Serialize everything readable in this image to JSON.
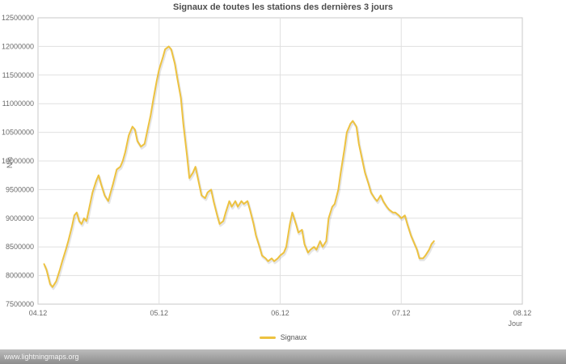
{
  "page": {
    "footer": "www.lightningmaps.org"
  },
  "colors": {
    "accent": "#edc240",
    "grid": "#e0e0e0",
    "plot_border": "#c8c8c8",
    "tick_text": "#6a6a6a",
    "title_text": "#4d4d4d"
  },
  "chart_data": {
    "type": "line",
    "title": "Signaux de toutes les stations des dernières 3 jours",
    "xlabel": "Jour",
    "ylabel": "N/h",
    "xlim": [
      4,
      8
    ],
    "ylim": [
      7500000,
      12500000
    ],
    "grid": true,
    "legend_position": "bottom",
    "x_ticks": [
      {
        "value": 4,
        "label": "04.12"
      },
      {
        "value": 5,
        "label": "05.12"
      },
      {
        "value": 6,
        "label": "06.12"
      },
      {
        "value": 7,
        "label": "07.12"
      },
      {
        "value": 8,
        "label": "08.12"
      }
    ],
    "y_ticks": [
      {
        "value": 7500000,
        "label": "7500000"
      },
      {
        "value": 8000000,
        "label": "8000000"
      },
      {
        "value": 8500000,
        "label": "8500000"
      },
      {
        "value": 9000000,
        "label": "9000000"
      },
      {
        "value": 9500000,
        "label": "9500000"
      },
      {
        "value": 10000000,
        "label": "10000000"
      },
      {
        "value": 10500000,
        "label": "10500000"
      },
      {
        "value": 11000000,
        "label": "11000000"
      },
      {
        "value": 11500000,
        "label": "11500000"
      },
      {
        "value": 12000000,
        "label": "12000000"
      },
      {
        "value": 12500000,
        "label": "12500000"
      }
    ],
    "series": [
      {
        "name": "Signaux",
        "color": "#edc240",
        "x": [
          4.05,
          4.07,
          4.1,
          4.12,
          4.15,
          4.18,
          4.2,
          4.23,
          4.25,
          4.28,
          4.3,
          4.32,
          4.34,
          4.36,
          4.38,
          4.4,
          4.42,
          4.45,
          4.48,
          4.5,
          4.52,
          4.55,
          4.58,
          4.6,
          4.62,
          4.65,
          4.68,
          4.7,
          4.72,
          4.75,
          4.78,
          4.8,
          4.82,
          4.85,
          4.88,
          4.9,
          4.93,
          4.95,
          4.98,
          5.0,
          5.03,
          5.05,
          5.08,
          5.1,
          5.13,
          5.15,
          5.18,
          5.2,
          5.23,
          5.25,
          5.28,
          5.3,
          5.33,
          5.35,
          5.38,
          5.4,
          5.43,
          5.45,
          5.48,
          5.5,
          5.53,
          5.55,
          5.58,
          5.6,
          5.63,
          5.65,
          5.68,
          5.7,
          5.73,
          5.75,
          5.78,
          5.8,
          5.83,
          5.85,
          5.88,
          5.9,
          5.93,
          5.95,
          5.98,
          6.0,
          6.03,
          6.05,
          6.08,
          6.1,
          6.13,
          6.15,
          6.18,
          6.2,
          6.23,
          6.25,
          6.28,
          6.3,
          6.33,
          6.35,
          6.38,
          6.4,
          6.43,
          6.45,
          6.48,
          6.5,
          6.53,
          6.55,
          6.58,
          6.6,
          6.63,
          6.65,
          6.68,
          6.7,
          6.73,
          6.75,
          6.78,
          6.8,
          6.83,
          6.85,
          6.88,
          6.9,
          6.93,
          6.95,
          6.98,
          7.0,
          7.03,
          7.05,
          7.08,
          7.1,
          7.13,
          7.15,
          7.18,
          7.2,
          7.23,
          7.25,
          7.27
        ],
        "y": [
          8200000,
          8100000,
          7850000,
          7800000,
          7900000,
          8100000,
          8250000,
          8450000,
          8600000,
          8850000,
          9050000,
          9100000,
          8950000,
          8900000,
          9000000,
          8950000,
          9150000,
          9450000,
          9650000,
          9750000,
          9600000,
          9400000,
          9300000,
          9450000,
          9600000,
          9850000,
          9900000,
          10000000,
          10150000,
          10450000,
          10600000,
          10550000,
          10350000,
          10250000,
          10300000,
          10500000,
          10800000,
          11050000,
          11400000,
          11600000,
          11800000,
          11950000,
          12000000,
          11950000,
          11700000,
          11450000,
          11100000,
          10650000,
          10100000,
          9700000,
          9800000,
          9900000,
          9600000,
          9400000,
          9350000,
          9450000,
          9500000,
          9300000,
          9050000,
          8900000,
          8950000,
          9100000,
          9300000,
          9200000,
          9300000,
          9200000,
          9300000,
          9250000,
          9300000,
          9150000,
          8900000,
          8700000,
          8500000,
          8350000,
          8300000,
          8250000,
          8300000,
          8250000,
          8300000,
          8350000,
          8400000,
          8500000,
          8900000,
          9100000,
          8900000,
          8750000,
          8800000,
          8550000,
          8400000,
          8450000,
          8500000,
          8450000,
          8600000,
          8500000,
          8600000,
          9000000,
          9200000,
          9250000,
          9500000,
          9800000,
          10200000,
          10500000,
          10650000,
          10700000,
          10600000,
          10300000,
          10000000,
          9800000,
          9600000,
          9450000,
          9350000,
          9300000,
          9400000,
          9300000,
          9200000,
          9150000,
          9100000,
          9100000,
          9050000,
          9000000,
          9050000,
          8900000,
          8700000,
          8600000,
          8450000,
          8300000,
          8300000,
          8350000,
          8450000,
          8550000,
          8600000
        ]
      }
    ]
  }
}
